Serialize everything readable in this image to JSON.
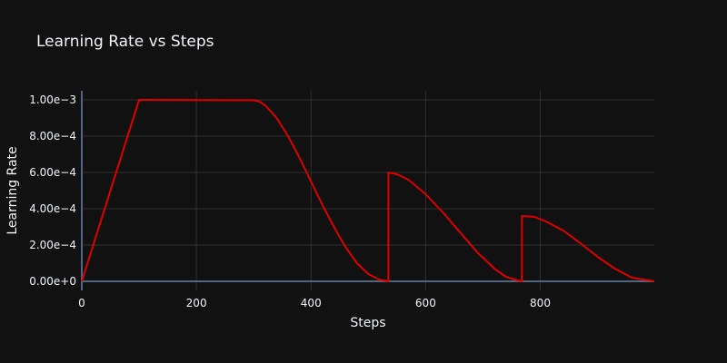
{
  "chart_data": {
    "type": "line",
    "title": "Learning Rate vs Steps",
    "xlabel": "Steps",
    "ylabel": "Learning Rate",
    "xlim": [
      0,
      999
    ],
    "ylim": [
      -5e-05,
      0.00105
    ],
    "xticks": [
      0,
      200,
      400,
      600,
      800
    ],
    "xtick_labels": [
      "0",
      "200",
      "400",
      "600",
      "800"
    ],
    "yticks": [
      0,
      0.0002,
      0.0004,
      0.0006,
      0.0008,
      0.001
    ],
    "ytick_labels": [
      "0.00e+0",
      "2.00e−4",
      "4.00e−4",
      "6.00e−4",
      "8.00e−4",
      "1.00e−3"
    ],
    "grid": true,
    "legend": false,
    "series": [
      {
        "color": "#e00000",
        "x": [
          0,
          100,
          200,
          300,
          310,
          320,
          340,
          360,
          380,
          400,
          420,
          440,
          460,
          480,
          500,
          520,
          535,
          535,
          550,
          570,
          600,
          630,
          660,
          690,
          720,
          740,
          760,
          768,
          768,
          790,
          810,
          840,
          870,
          900,
          930,
          960,
          999
        ],
        "y": [
          0,
          0.001,
          0.000999,
          0.000998,
          0.00099,
          0.00097,
          0.0009,
          0.0008,
          0.00068,
          0.00055,
          0.00042,
          0.0003,
          0.00019,
          0.0001,
          4e-05,
          8e-06,
          0,
          0.0006,
          0.00059,
          0.00056,
          0.00048,
          0.00038,
          0.00027,
          0.00016,
          7e-05,
          2.5e-05,
          5e-06,
          0,
          0.00036,
          0.000355,
          0.00033,
          0.00028,
          0.00021,
          0.000135,
          7e-05,
          2e-05,
          0
        ]
      }
    ]
  }
}
